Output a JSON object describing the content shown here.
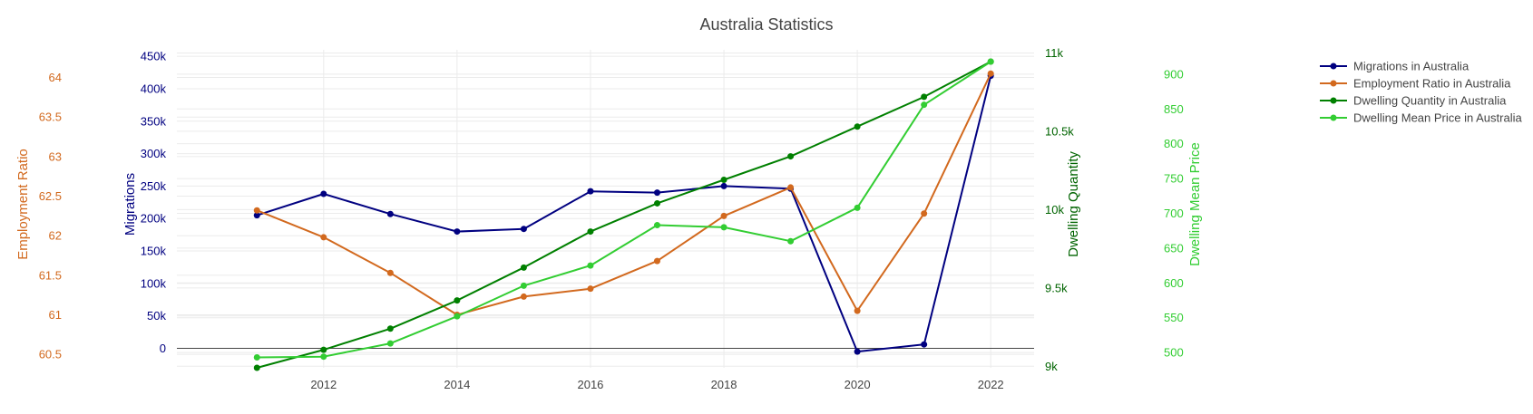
{
  "chart_data": {
    "type": "line",
    "title": "Australia Statistics",
    "x": [
      2011,
      2012,
      2013,
      2014,
      2015,
      2016,
      2017,
      2018,
      2019,
      2020,
      2021,
      2022
    ],
    "x_ticks": [
      2012,
      2014,
      2016,
      2018,
      2020,
      2022
    ],
    "x_range": [
      2009.8,
      2022.65
    ],
    "grid": true,
    "legend_position": "top-right",
    "series": [
      {
        "name": "Migrations in Australia",
        "axis": "y1",
        "color": "#000080",
        "values": [
          205000,
          238000,
          207000,
          180000,
          184000,
          242000,
          240000,
          250000,
          246000,
          -5000,
          6000,
          420000
        ]
      },
      {
        "name": "Employment Ratio in Australia",
        "axis": "y2",
        "color": "#D2691E",
        "values": [
          62.32,
          61.98,
          61.53,
          61.0,
          61.23,
          61.33,
          61.68,
          62.25,
          62.61,
          61.05,
          62.28,
          64.05
        ]
      },
      {
        "name": "Dwelling Quantity in Australia",
        "axis": "y3",
        "color": "#008000",
        "values": [
          8990,
          9105,
          9240,
          9420,
          9630,
          9860,
          10040,
          10190,
          10340,
          10530,
          10720,
          10945
        ]
      },
      {
        "name": "Dwelling Mean Price in Australia",
        "axis": "y4",
        "color": "#32CD32",
        "values": [
          493,
          494,
          513,
          552,
          596,
          625,
          683,
          680,
          660,
          708,
          856,
          918
        ]
      }
    ],
    "axes": {
      "y1": {
        "label": "Migrations",
        "color": "#000080",
        "range": [
          -30000,
          460000
        ],
        "ticks": [
          0,
          50000,
          100000,
          150000,
          200000,
          250000,
          300000,
          350000,
          400000,
          450000
        ],
        "tick_labels": [
          "0",
          "50k",
          "100k",
          "150k",
          "200k",
          "250k",
          "300k",
          "350k",
          "400k",
          "450k"
        ]
      },
      "y2": {
        "label": "Employment Ratio",
        "color": "#D2691E",
        "range": [
          60.33,
          64.35
        ],
        "ticks": [
          60.5,
          61,
          61.5,
          62,
          62.5,
          63,
          63.5,
          64
        ],
        "tick_labels": [
          "60.5",
          "61",
          "61.5",
          "62",
          "62.5",
          "63",
          "63.5",
          "64"
        ]
      },
      "y3": {
        "label": "Dwelling Quantity",
        "color": "#006400",
        "range": [
          8990,
          11020
        ],
        "ticks": [
          9000,
          9500,
          10000,
          10500,
          11000
        ],
        "tick_labels": [
          "9k",
          "9.5k",
          "10k",
          "10.5k",
          "11k"
        ]
      },
      "y4": {
        "label": "Dwelling Mean Price",
        "color": "#32CD32",
        "range": [
          478,
          935
        ],
        "ticks": [
          500,
          550,
          600,
          650,
          700,
          750,
          800,
          850,
          900
        ],
        "tick_labels": [
          "500",
          "550",
          "600",
          "650",
          "700",
          "750",
          "800",
          "850",
          "900"
        ]
      }
    }
  }
}
